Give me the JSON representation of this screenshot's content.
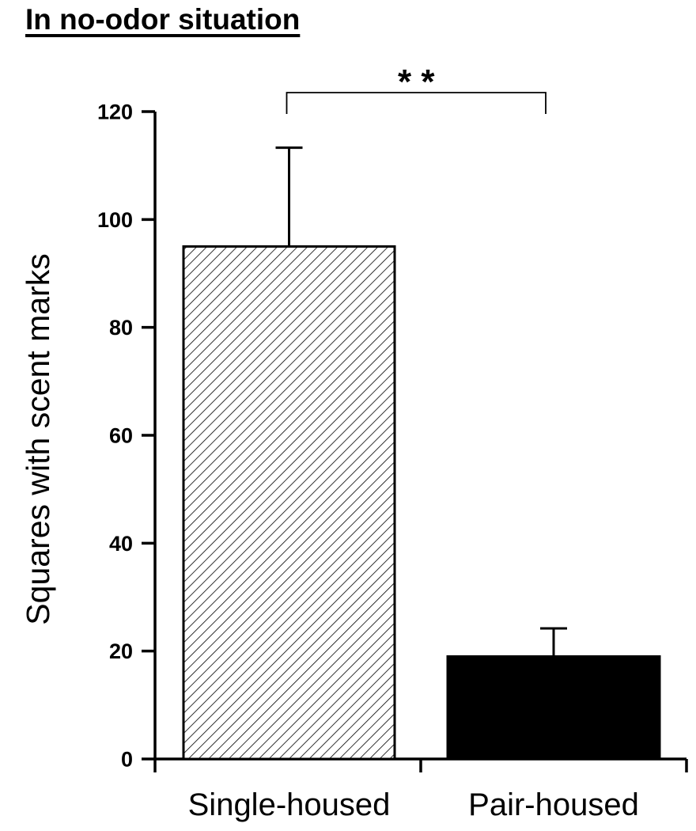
{
  "chart_data": {
    "type": "bar",
    "title": "In no-odor situation",
    "xlabel": "",
    "ylabel": "Squares with scent marks",
    "categories": [
      "Single-housed",
      "Pair-housed"
    ],
    "values": [
      95,
      19
    ],
    "error_bars": [
      18.3,
      5.2
    ],
    "bar_fills": [
      "hatched",
      "solid"
    ],
    "bar_color": "#000000",
    "ylim": [
      0,
      120
    ],
    "yticks": [
      0,
      20,
      40,
      60,
      80,
      100,
      120
    ],
    "grid": false,
    "significance": {
      "label": "* *",
      "between": [
        "Single-housed",
        "Pair-housed"
      ]
    }
  }
}
